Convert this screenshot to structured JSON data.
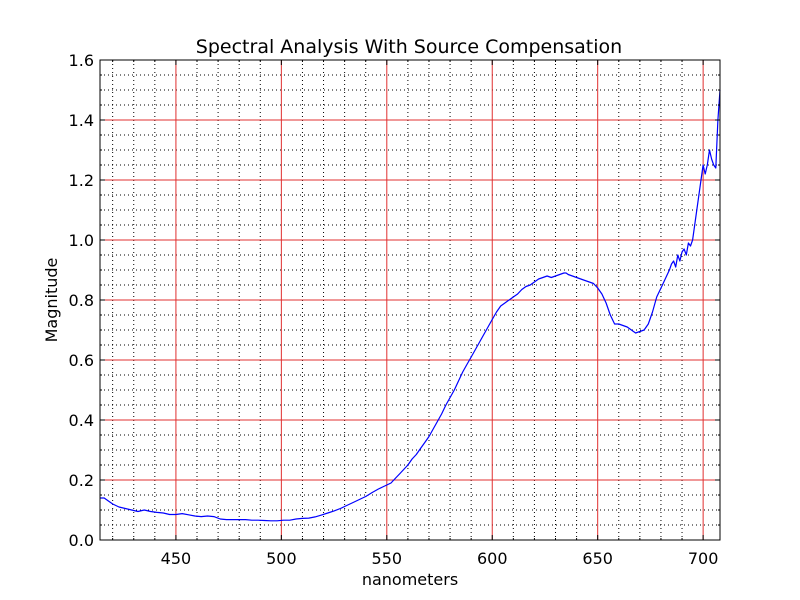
{
  "chart_data": {
    "type": "line",
    "title": "Spectral Analysis With Source Compensation",
    "xlabel": "nanometers",
    "ylabel": "Magnitude",
    "xlim": [
      414,
      708
    ],
    "ylim": [
      0.0,
      1.6
    ],
    "x_ticks": [
      450,
      500,
      550,
      600,
      650,
      700
    ],
    "x_tick_labels": [
      "450",
      "500",
      "550",
      "600",
      "650",
      "700"
    ],
    "y_ticks": [
      0.0,
      0.2,
      0.4,
      0.6,
      0.8,
      1.0,
      1.2,
      1.4,
      1.6
    ],
    "y_tick_labels": [
      "0.0",
      "0.2",
      "0.4",
      "0.6",
      "0.8",
      "1.0",
      "1.2",
      "1.4",
      "1.6"
    ],
    "x_minor_step": 10,
    "y_minor_step": 0.05,
    "grid": "on",
    "legend": "none",
    "colors": {
      "line": "#0000ff",
      "major_grid": "#e03030",
      "minor_grid": "#000000"
    },
    "series": [
      {
        "x": [
          414,
          416,
          418,
          420,
          423,
          426,
          429,
          432,
          435,
          438,
          441,
          444,
          447,
          450,
          453,
          456,
          459,
          462,
          465,
          468,
          471,
          474,
          477,
          480,
          483,
          486,
          489,
          492,
          495,
          498,
          501,
          504,
          507,
          510,
          513,
          516,
          519,
          522,
          525,
          528,
          531,
          534,
          537,
          540,
          543,
          546,
          549,
          552,
          554,
          556,
          558,
          560,
          562,
          564,
          566,
          568,
          570,
          572,
          574,
          576,
          578,
          580,
          582,
          584,
          586,
          588,
          590,
          592,
          594,
          596,
          598,
          600,
          602,
          604,
          606,
          608,
          610,
          612,
          614,
          616,
          618,
          620,
          622,
          624,
          626,
          628,
          630,
          632,
          634,
          635,
          636,
          638,
          640,
          642,
          644,
          646,
          648,
          650,
          652,
          654,
          656,
          658,
          660,
          662,
          664,
          666,
          668,
          670,
          672,
          674,
          676,
          678,
          680,
          682,
          684,
          685,
          686,
          687,
          688,
          689,
          690,
          691,
          692,
          693,
          694,
          695,
          696,
          697,
          698,
          699,
          700,
          701,
          702,
          703,
          704,
          705,
          706,
          707,
          708
        ],
        "values": [
          0.14,
          0.14,
          0.13,
          0.12,
          0.11,
          0.105,
          0.1,
          0.095,
          0.1,
          0.095,
          0.092,
          0.09,
          0.085,
          0.085,
          0.088,
          0.084,
          0.08,
          0.078,
          0.08,
          0.078,
          0.07,
          0.068,
          0.068,
          0.068,
          0.068,
          0.066,
          0.066,
          0.065,
          0.064,
          0.064,
          0.066,
          0.066,
          0.07,
          0.072,
          0.073,
          0.077,
          0.083,
          0.09,
          0.097,
          0.105,
          0.115,
          0.125,
          0.135,
          0.145,
          0.158,
          0.17,
          0.18,
          0.19,
          0.205,
          0.22,
          0.235,
          0.25,
          0.27,
          0.285,
          0.305,
          0.325,
          0.345,
          0.37,
          0.395,
          0.42,
          0.45,
          0.475,
          0.5,
          0.53,
          0.56,
          0.585,
          0.61,
          0.635,
          0.66,
          0.685,
          0.71,
          0.735,
          0.76,
          0.78,
          0.79,
          0.8,
          0.81,
          0.82,
          0.835,
          0.845,
          0.85,
          0.86,
          0.87,
          0.875,
          0.88,
          0.875,
          0.88,
          0.885,
          0.89,
          0.89,
          0.885,
          0.88,
          0.875,
          0.87,
          0.865,
          0.86,
          0.855,
          0.84,
          0.82,
          0.79,
          0.75,
          0.72,
          0.72,
          0.715,
          0.71,
          0.7,
          0.69,
          0.695,
          0.7,
          0.72,
          0.76,
          0.81,
          0.84,
          0.87,
          0.9,
          0.92,
          0.93,
          0.91,
          0.95,
          0.93,
          0.96,
          0.97,
          0.95,
          0.99,
          0.98,
          1.0,
          1.05,
          1.1,
          1.15,
          1.2,
          1.25,
          1.22,
          1.25,
          1.3,
          1.27,
          1.25,
          1.24,
          1.4,
          1.5
        ]
      }
    ]
  }
}
